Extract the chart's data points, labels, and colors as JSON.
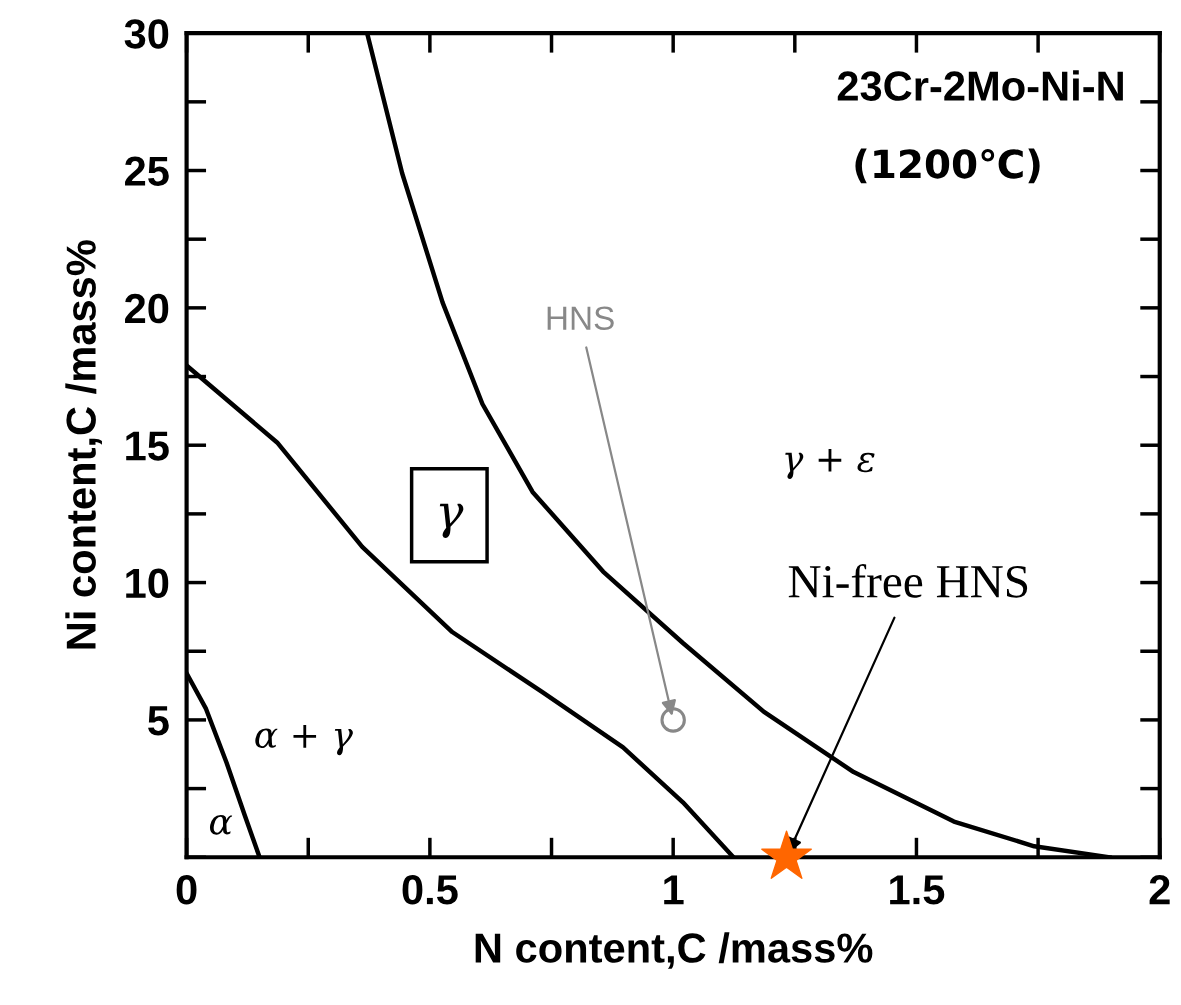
{
  "chart_data": {
    "type": "line",
    "title": "23Cr-2Mo-Ni-N",
    "subtitle": "(1200℃)",
    "xlabel": "N content,C /mass%",
    "ylabel": "Ni content,C /mass%",
    "xlim": [
      0,
      2
    ],
    "ylim": [
      0,
      30
    ],
    "xticks": [
      0,
      0.5,
      1,
      1.5,
      2
    ],
    "yticks": [
      5,
      10,
      15,
      20,
      25,
      30
    ],
    "grid": false,
    "legend": false,
    "series": [
      {
        "type": "line",
        "color": "#000000",
        "x": [
          0,
          0.04,
          0.082,
          0.12,
          0.15
        ],
        "values": [
          6.7,
          5.4,
          3.45,
          1.5,
          0
        ]
      },
      {
        "type": "line",
        "color": "#000000",
        "x": [
          0,
          0.186,
          0.361,
          0.546,
          0.732,
          0.897,
          1.02,
          1.124
        ],
        "values": [
          17.9,
          15.1,
          11.3,
          8.2,
          6.0,
          4.0,
          2.0,
          0
        ]
      },
      {
        "type": "line",
        "color": "#000000",
        "x": [
          0.371,
          0.443,
          0.526,
          0.608,
          0.711,
          0.856,
          1.02,
          1.186,
          1.371,
          1.577,
          1.742,
          1.897
        ],
        "values": [
          30,
          24.9,
          20.2,
          16.5,
          13.3,
          10.4,
          7.8,
          5.3,
          3.1,
          1.3,
          0.4,
          0
        ]
      },
      {
        "type": "scatter",
        "marker": "circle",
        "color": "#888888",
        "x": [
          1.0
        ],
        "values": [
          5
        ]
      },
      {
        "type": "scatter",
        "marker": "star",
        "color": "#ff6600",
        "x": [
          1.233
        ],
        "values": [
          0
        ]
      }
    ],
    "annotations": [
      {
        "text": "HNS",
        "x": 1.0,
        "y": 5
      },
      {
        "text": "Ni-free HNS",
        "x": 1.233,
        "y": 0
      },
      "γ",
      "γ + ε",
      "α + γ",
      "α"
    ]
  }
}
